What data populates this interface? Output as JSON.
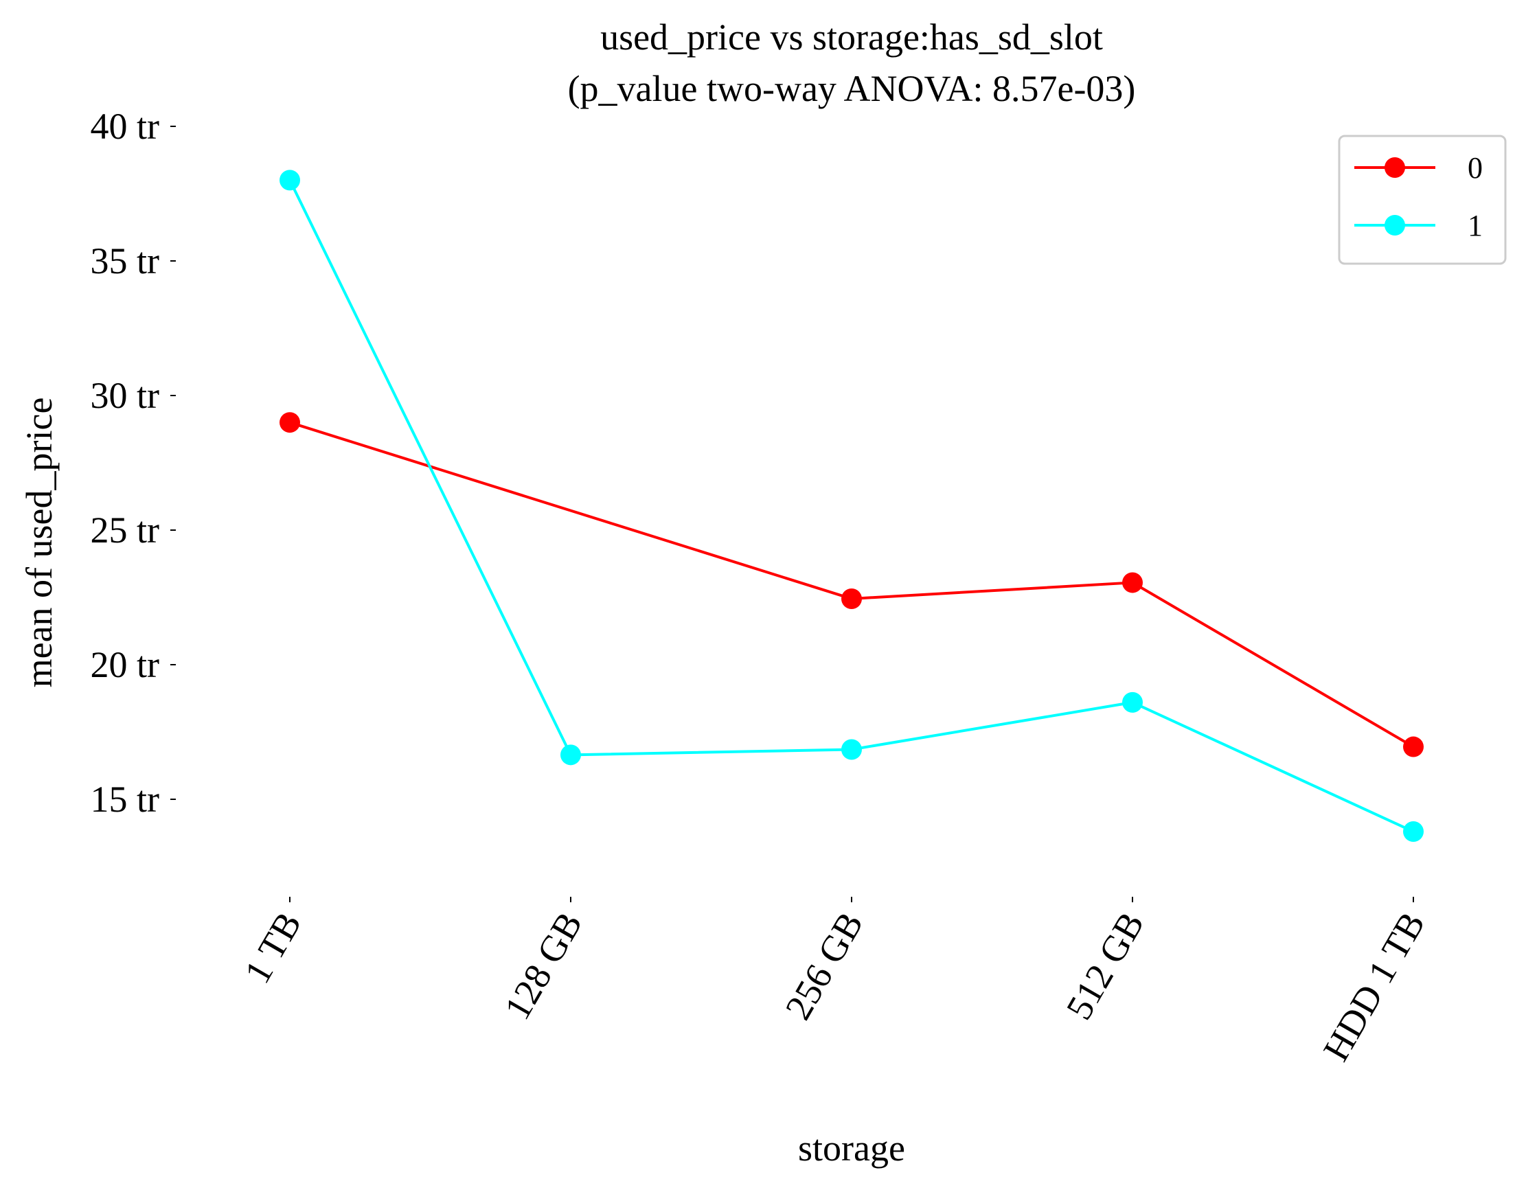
{
  "chart_data": {
    "type": "line",
    "title": "used_price vs storage:has_sd_slot",
    "subtitle": "(p_value two-way ANOVA: 8.57e-03)",
    "xlabel": "storage",
    "ylabel": "mean of used_price",
    "categories": [
      "1 TB",
      "128 GB",
      "256 GB",
      "512 GB",
      "HDD 1 TB"
    ],
    "y_ticks": [
      15,
      20,
      25,
      30,
      35,
      40
    ],
    "y_tick_labels": [
      "15 tr",
      "20 tr",
      "25 tr",
      "30 tr",
      "35 tr",
      "40 tr"
    ],
    "ylim": [
      12.5,
      41
    ],
    "grid": false,
    "legend_position": "top-right",
    "series": [
      {
        "name": "0",
        "color": "#ff0000",
        "values": [
          29.0,
          null,
          22.45,
          23.05,
          16.95
        ]
      },
      {
        "name": "1",
        "color": "#00ffff",
        "values": [
          38.0,
          16.65,
          16.85,
          18.6,
          13.8
        ]
      }
    ]
  }
}
